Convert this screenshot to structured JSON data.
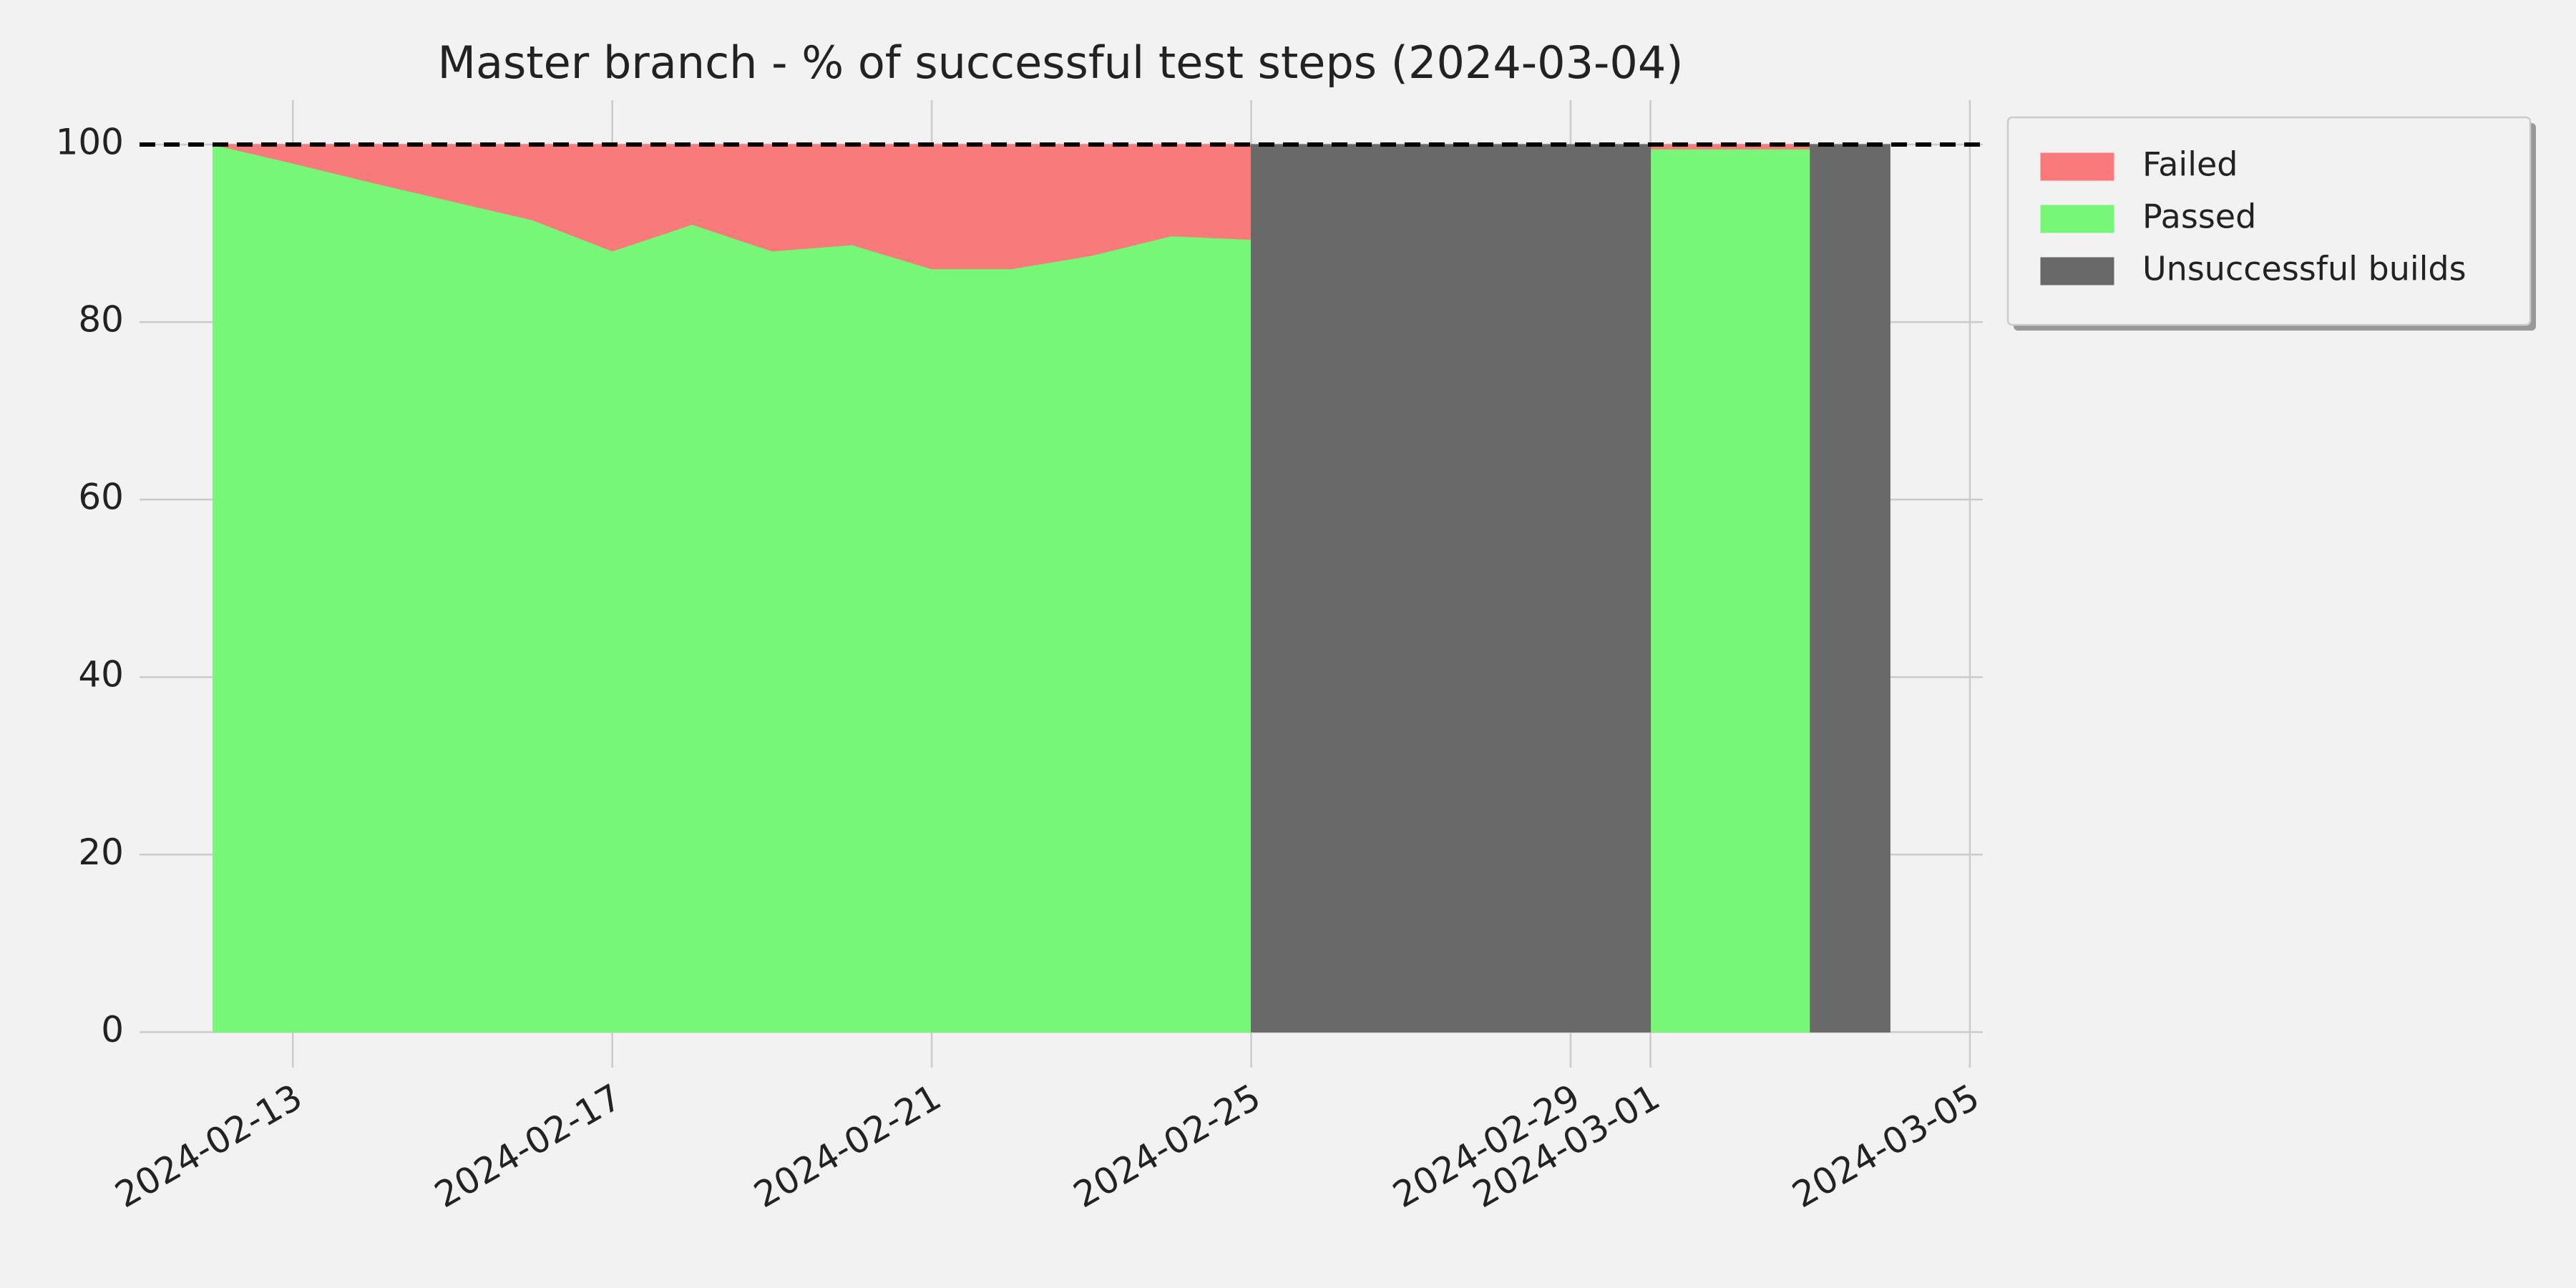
{
  "chart_data": {
    "type": "area",
    "title": "Master branch - % of successful test steps (2024-03-04)",
    "x": [
      "2024-02-12",
      "2024-02-13",
      "2024-02-14",
      "2024-02-15",
      "2024-02-16",
      "2024-02-17",
      "2024-02-18",
      "2024-02-19",
      "2024-02-20",
      "2024-02-21",
      "2024-02-22",
      "2024-02-23",
      "2024-02-24",
      "2024-02-25",
      "2024-02-26",
      "2024-02-27",
      "2024-02-28",
      "2024-02-29",
      "2024-03-01",
      "2024-03-02",
      "2024-03-03",
      "2024-03-04"
    ],
    "series": [
      {
        "name": "Failed",
        "color": "#f87a7a",
        "values": [
          0,
          2.1,
          4.3,
          6.4,
          8.5,
          12,
          9,
          12,
          11.3,
          14,
          14,
          12.5,
          10.3,
          10.7,
          null,
          null,
          null,
          null,
          0.5,
          0.5,
          0.5,
          null
        ]
      },
      {
        "name": "Passed",
        "color": "#77f777",
        "values": [
          100,
          97.9,
          95.7,
          93.6,
          91.5,
          88,
          91,
          88,
          88.7,
          86,
          86,
          87.5,
          89.7,
          89.3,
          null,
          null,
          null,
          null,
          99.5,
          99.5,
          99.5,
          null
        ]
      },
      {
        "name": "Unsuccessful builds",
        "color": "#696969",
        "values": [
          null,
          null,
          null,
          null,
          null,
          null,
          null,
          null,
          null,
          null,
          null,
          null,
          null,
          100,
          100,
          100,
          100,
          100,
          100,
          null,
          100,
          100
        ]
      }
    ],
    "hline": 100,
    "xlim": [
      "2024-02-11",
      "2024-03-05"
    ],
    "xticks": [
      "2024-02-13",
      "2024-02-17",
      "2024-02-21",
      "2024-02-25",
      "2024-02-29",
      "2024-03-01",
      "2024-03-05"
    ],
    "ylim": [
      -4,
      105
    ],
    "yticks": [
      0,
      20,
      40,
      60,
      80,
      100
    ],
    "grid": true,
    "legend": "upper right outside"
  }
}
